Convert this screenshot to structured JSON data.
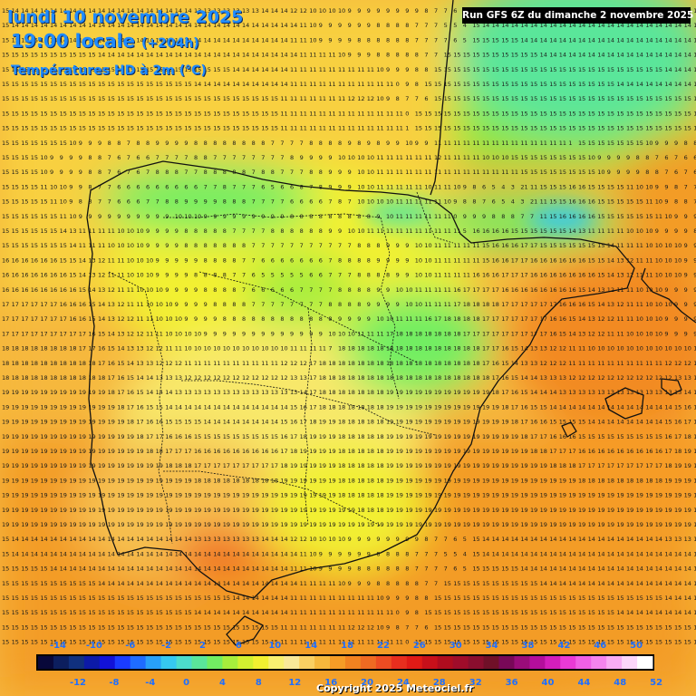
{
  "header": {
    "date_line": "lundi 10 novembre 2025",
    "time_line": "19:00 locale",
    "lead_time": "(+204h)",
    "parameter": "Températures HD à 2m (°C)",
    "run_info": "Run GFS 6Z du dimanche 2 novembre 2025"
  },
  "footer": {
    "copyright": "Copyright 2025 Meteociel.fr"
  },
  "legend": {
    "top_labels": [
      "-14",
      "-10",
      "-6",
      "-2",
      "2",
      "6",
      "10",
      "14",
      "18",
      "22",
      "26",
      "30",
      "34",
      "38",
      "42",
      "46",
      "50"
    ],
    "bottom_labels": [
      "-12",
      "-8",
      "-4",
      "0",
      "4",
      "8",
      "12",
      "16",
      "20",
      "24",
      "28",
      "32",
      "36",
      "40",
      "44",
      "48",
      "52"
    ],
    "colors": [
      "#08083a",
      "#0c1e5e",
      "#10307e",
      "#0c1aa8",
      "#1212d8",
      "#1a3cff",
      "#1e6cff",
      "#28a0f8",
      "#36c8f0",
      "#4cdccc",
      "#5ae69a",
      "#72ee62",
      "#a6ee3c",
      "#d2f030",
      "#f2f030",
      "#f8f070",
      "#f8e898",
      "#fad062",
      "#f6b83c",
      "#f69c26",
      "#f28220",
      "#f06a22",
      "#ee4c22",
      "#e82e1e",
      "#e01a16",
      "#c8101a",
      "#b00c1e",
      "#a00c2a",
      "#8a0e2e",
      "#701028",
      "#780858",
      "#9a0c7a",
      "#b40e9c",
      "#d41ebc",
      "#ea3ad6",
      "#f060e6",
      "#f484ee",
      "#f8acf4",
      "#fcd6fa",
      "#ffffff"
    ]
  },
  "map": {
    "region": "Iberian Peninsula and surrounding seas",
    "value_grid": [
      "1514141414141414141414141414141414141414131313131313131414141212101010109999999987765",
      "1514141414141414141414141414141414141414141414141414141414141411109999998888777554",
      "1515151515141414141414141414141414141414141414141414141414141111109999888888777765",
      "1515151515151515151514141414141414141414141414141414141414141411111111109998888877",
      "1515151515151515151515151515151515151515151515151414141414141111111111111111111099988",
      "1515151515151515151515151515151515151515141414141414141414141111111111111111111111098",
      "1515151515151515151515151515151515151515151515151515151515111111111111111212121098776",
      "1515151515151515151515151515151515151515151515151515151515111111111111111111111111110",
      "1515151515151515151515151515151515151515151515151515151515111111111111111111111111111",
      "15151515151515109998878899998888888877778888989899109911111111111111111111111111111",
      "151515151099998876766777788777777778999910101010111111111111121111111110101015151515",
      "151515151099998876767888778888878877788999101011111111111111111111111111111115151515",
      "15151515111010998776666666667787776566878999101011111111111011111098654321111515151616",
      "15151515151110988776667788999988877776666787101010101111111111109887654321111515161616",
      "15151515151511109999999999101010999999999888888888910111111111111099988877111516161616",
      "151515151515141311111111101010999988888777788888899101011111111111111111111516161616",
      "151515151515151411111110101010999988888887777777777788899910101111111111151616161717",
      "16161616161615151413121111101010999998888776666666788889999101011111111111516161717",
      "16161616161616151413121111101010999988887765555566777888899101011111111161616171717",
      "16161616161616161514131211111010109999888876666677778888991010111111111617171717",
      "17171717171716161615141312111110101099998888777777778888999910101111111718181818",
      "17171717171717161615141312121111101010999988888888888899991010111111161718181818",
      "17171717171717171716151413121211111010101099999999999991010101111111718181818181818",
      "18181818181818181717161514131312121111101010101010101010101011111111718181818181818",
      "18181818181818181818171615141313121212111111111111111111111212121718181818181818",
      "18181818181818181818181716151414131313121212121212121212121213131718181818181818",
      "19191919191919191919191817161514141413131313131313131313131313141718181818181818",
      "19191919191919191919191918171615151414141414141414141414141415161718181818181818",
      "19191919191919191919191919181716161515151514141414141414141516171819191818181818",
      "19191919191919191919191919191817171616161515151515151515151617181919191818181818",
      "19191919191919191919191919191918181717171616161616161616161718191919191818181818",
      "19191919191919191919191919191919191818181717171717171717171819191919191818181818",
      "19191919191919191919191919191919191919191818181818181818181919191919191818181818",
      "19191919191919191919191919191919191919191919191919191919191919191919191818181818",
      "19191919191919191919191919191919191919191919191919191919191919191919191919181818",
      "191919191919191919191919191919191919191919191919191919191919191919191919191919"
    ],
    "grid_note": "Sampled rows of the numeric value overlay drawn across the map"
  }
}
